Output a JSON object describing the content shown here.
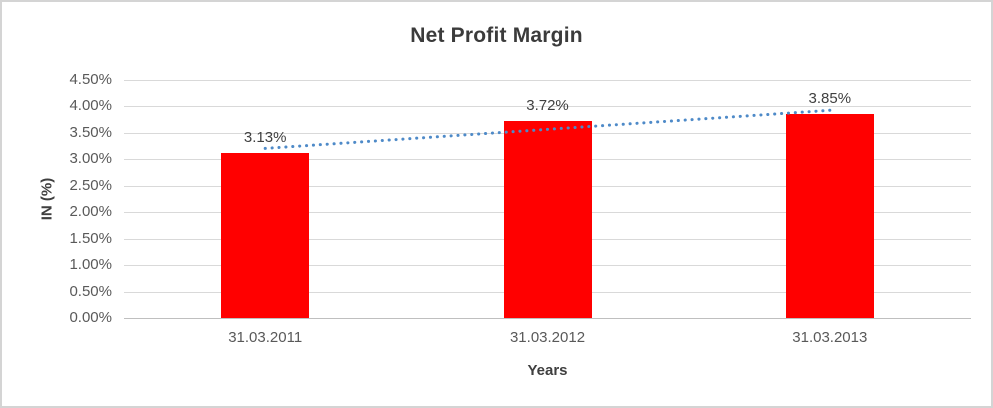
{
  "chart_data": {
    "type": "bar",
    "title": "Net Profit Margin",
    "xlabel": "Years",
    "ylabel": "IN (%)",
    "categories": [
      "31.03.2011",
      "31.03.2012",
      "31.03.2013"
    ],
    "values": [
      3.13,
      3.72,
      3.85
    ],
    "data_labels": [
      "3.13%",
      "3.72%",
      "3.85%"
    ],
    "ylim": [
      0,
      4.5
    ],
    "yticks": [
      {
        "v": 0.0,
        "label": "0.00%"
      },
      {
        "v": 0.5,
        "label": "0.50%"
      },
      {
        "v": 1.0,
        "label": "1.00%"
      },
      {
        "v": 1.5,
        "label": "1.50%"
      },
      {
        "v": 2.0,
        "label": "2.00%"
      },
      {
        "v": 2.5,
        "label": "2.50%"
      },
      {
        "v": 3.0,
        "label": "3.00%"
      },
      {
        "v": 3.5,
        "label": "3.50%"
      },
      {
        "v": 4.0,
        "label": "4.00%"
      },
      {
        "v": 4.5,
        "label": "4.50%"
      }
    ],
    "grid": true,
    "legend": "none",
    "trendline": {
      "type": "linear",
      "style": "dotted"
    }
  },
  "colors": {
    "bar": "#ff0000",
    "trendline": "#4e8ac8",
    "gridline": "#d9d9d9",
    "axis_line": "#bfbfbf",
    "title_text": "#3b3b3b",
    "axis_text": "#595959",
    "data_label_text": "#404040",
    "frame_border": "#d4d4d4"
  }
}
